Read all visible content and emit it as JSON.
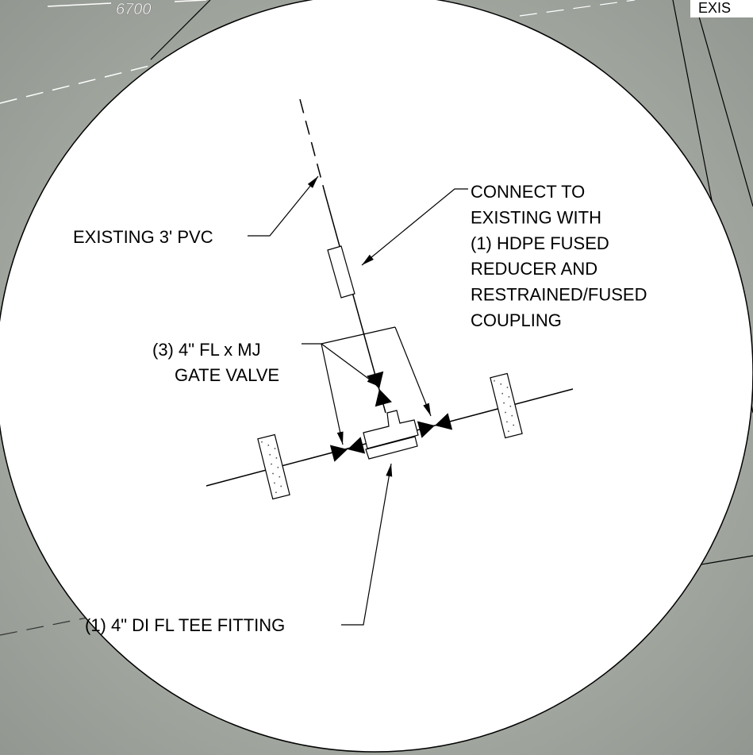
{
  "background_labels": {
    "contour": "6700",
    "corner": "EXIS"
  },
  "callouts": {
    "existing_pipe": {
      "lines": [
        "EXISTING 3' PVC"
      ]
    },
    "connection": {
      "lines": [
        "CONNECT TO",
        "EXISTING WITH",
        "(1) HDPE FUSED",
        "REDUCER AND",
        "RESTRAINED/FUSED",
        "COUPLING"
      ]
    },
    "gate_valve": {
      "lines": [
        "(3) 4\" FL x MJ",
        "GATE VALVE"
      ]
    },
    "tee": {
      "lines": [
        "(1) 4\" DI FL TEE FITTING"
      ]
    }
  }
}
